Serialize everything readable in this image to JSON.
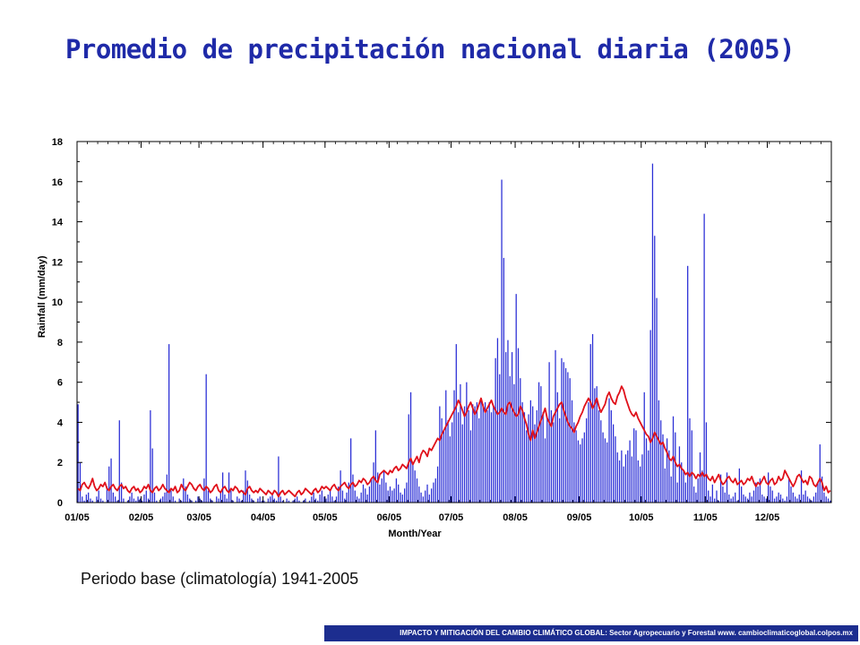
{
  "page": {
    "title": "Promedio de precipitación nacional diaria (2005)",
    "caption": "Periodo base (climatología) 1941-2005",
    "footer": "IMPACTO Y MITIGACIÓN DEL CAMBIO CLIMÁTICO GLOBAL: Sector Agropecuario y Forestal www. cambioclimaticoglobal.colpos.mx"
  },
  "colors": {
    "title": "#1f2aa8",
    "bars": "#2b2fd6",
    "climatology_line": "#e0101a",
    "footer_bg": "#1c2d8f"
  },
  "chart_data": {
    "type": "bar",
    "overlay": "line",
    "xlabel": "Month/Year",
    "ylabel": "Rainfall (mm/day)",
    "ylim": [
      0,
      18
    ],
    "yticks": [
      0,
      2,
      4,
      6,
      8,
      10,
      12,
      14,
      16,
      18
    ],
    "x_tick_labels": [
      "01/05",
      "02/05",
      "03/05",
      "04/05",
      "05/05",
      "06/05",
      "07/05",
      "08/05",
      "09/05",
      "10/05",
      "11/05",
      "12/05"
    ],
    "grid": false,
    "days_in_year": 365,
    "month_start_days": [
      0,
      31,
      59,
      90,
      120,
      151,
      181,
      212,
      243,
      273,
      304,
      334
    ],
    "series": [
      {
        "kind": "bar",
        "note": "daily national average precipitation 2005, approximate, one value per day",
        "monthly_daily_values": [
          [
            4.9,
            2.0,
            0.3,
            0.1,
            0.4,
            0.5,
            0.2,
            0.1,
            0.0,
            0.3,
            0.6,
            0.2,
            0.1,
            0.0,
            0.8,
            1.8,
            2.2,
            0.5,
            0.3,
            0.1,
            4.1,
            1.0,
            0.2,
            0.0,
            0.1,
            0.3,
            0.5,
            0.2,
            0.1,
            0.3,
            0.2
          ],
          [
            0.1,
            0.4,
            0.6,
            0.2,
            4.6,
            2.7,
            0.5,
            0.1,
            0.0,
            0.2,
            0.3,
            0.5,
            1.4,
            7.9,
            0.6,
            0.3,
            0.1,
            0.0,
            0.2,
            0.1,
            1.2,
            0.8,
            0.4,
            0.2,
            0.1,
            0.0,
            0.1,
            0.3
          ],
          [
            0.2,
            0.1,
            1.2,
            6.4,
            0.6,
            0.2,
            0.1,
            0.0,
            0.3,
            0.2,
            0.5,
            1.5,
            0.4,
            0.2,
            1.5,
            0.6,
            0.1,
            0.0,
            0.3,
            0.2,
            0.1,
            0.6,
            1.6,
            1.1,
            0.4,
            0.2,
            0.1,
            0.0,
            0.2,
            0.3,
            0.1
          ],
          [
            0.1,
            0.0,
            0.2,
            0.3,
            0.4,
            0.2,
            0.1,
            2.3,
            0.3,
            0.1,
            0.0,
            0.2,
            0.1,
            0.0,
            0.1,
            0.2,
            0.3,
            0.1,
            0.0,
            0.1,
            0.2,
            0.0,
            0.1,
            0.3,
            0.5,
            0.2,
            0.1,
            0.4,
            0.6,
            0.3
          ],
          [
            0.2,
            0.4,
            0.6,
            0.3,
            0.1,
            0.3,
            0.8,
            1.6,
            0.6,
            0.2,
            0.5,
            1.0,
            3.2,
            1.4,
            0.6,
            0.3,
            0.2,
            0.5,
            0.9,
            0.7,
            0.4,
            0.8,
            1.2,
            2.0,
            3.6,
            1.5,
            0.9,
            1.2,
            1.6,
            1.0,
            0.6
          ],
          [
            0.8,
            0.6,
            0.7,
            1.2,
            0.9,
            0.5,
            0.4,
            0.7,
            1.0,
            4.4,
            5.5,
            2.0,
            1.6,
            1.2,
            0.8,
            0.5,
            0.3,
            0.6,
            0.9,
            0.4,
            0.7,
            1.0,
            1.2,
            1.8,
            4.8,
            4.2,
            3.6,
            5.6,
            4.1,
            3.3
          ],
          [
            4.0,
            5.6,
            7.9,
            4.5,
            5.9,
            3.9,
            4.8,
            6.0,
            4.6,
            3.6,
            4.9,
            4.8,
            5.0,
            4.2,
            5.1,
            4.9,
            5.0,
            4.6,
            5.0,
            4.5,
            4.8,
            7.2,
            8.2,
            6.4,
            16.1,
            12.2,
            7.5,
            8.1,
            6.3,
            7.5,
            5.9
          ],
          [
            10.4,
            7.7,
            6.2,
            5.0,
            4.5,
            3.6,
            4.4,
            5.1,
            4.8,
            3.9,
            4.6,
            6.0,
            5.8,
            4.5,
            3.2,
            4.2,
            7.0,
            4.6,
            4.0,
            7.6,
            5.5,
            4.2,
            7.2,
            7.0,
            6.7,
            6.5,
            6.2,
            5.1,
            4.0,
            3.6,
            3.1
          ],
          [
            2.9,
            3.2,
            3.5,
            4.2,
            5.0,
            7.9,
            8.4,
            5.7,
            5.8,
            4.6,
            4.1,
            3.5,
            3.2,
            3.0,
            5.2,
            4.6,
            3.9,
            3.3,
            2.5,
            2.1,
            2.6,
            1.8,
            2.4,
            2.6,
            3.1,
            2.3,
            3.7,
            3.6,
            2.1,
            1.8
          ],
          [
            2.4,
            5.5,
            3.2,
            2.6,
            8.6,
            16.9,
            13.3,
            10.2,
            5.1,
            4.1,
            3.4,
            1.7,
            3.2,
            2.6,
            1.3,
            4.3,
            3.5,
            1.0,
            2.8,
            2.0,
            1.6,
            1.0,
            11.8,
            4.2,
            3.6,
            0.8,
            0.5,
            1.2,
            2.5,
            1.6,
            14.4
          ],
          [
            4.0,
            0.6,
            0.3,
            0.9,
            0.2,
            0.6,
            0.1,
            1.4,
            0.8,
            0.5,
            1.5,
            0.4,
            0.2,
            0.3,
            0.5,
            0.1,
            1.7,
            0.8,
            0.4,
            0.3,
            0.2,
            0.5,
            0.3,
            0.6,
            1.0,
            0.8,
            1.2,
            0.4,
            0.3,
            0.2
          ],
          [
            1.5,
            0.8,
            0.6,
            0.2,
            0.3,
            0.5,
            0.4,
            0.2,
            0.1,
            0.3,
            1.2,
            0.8,
            0.5,
            0.3,
            0.2,
            0.4,
            1.6,
            0.4,
            0.6,
            0.3,
            0.2,
            0.1,
            0.3,
            0.5,
            1.0,
            2.9,
            1.3,
            0.5,
            0.3,
            0.2,
            0.1
          ]
        ]
      },
      {
        "kind": "line",
        "note": "climatology 1941-2005, approximate daily value per month",
        "monthly_daily_values": [
          [
            0.7,
            0.6,
            0.9,
            1.0,
            0.8,
            0.7,
            0.9,
            1.2,
            0.8,
            0.6,
            0.7,
            0.9,
            0.8,
            1.0,
            0.7,
            0.6,
            0.8,
            0.9,
            0.7,
            0.6,
            0.8,
            0.9,
            0.7,
            0.8,
            0.6,
            0.5,
            0.7,
            0.8,
            0.6,
            0.7,
            0.5
          ],
          [
            0.6,
            0.8,
            0.7,
            0.9,
            0.6,
            0.5,
            0.7,
            0.8,
            0.6,
            0.7,
            0.9,
            0.7,
            0.6,
            0.5,
            0.7,
            0.6,
            0.8,
            0.5,
            0.6,
            0.9,
            0.7,
            0.6,
            0.8,
            1.0,
            0.9,
            0.7,
            0.6,
            0.8
          ],
          [
            0.9,
            0.7,
            0.6,
            0.8,
            0.7,
            0.5,
            0.6,
            0.8,
            0.9,
            0.6,
            0.5,
            0.7,
            0.8,
            0.6,
            0.5,
            0.7,
            0.6,
            0.8,
            0.7,
            0.5,
            0.6,
            0.5,
            0.4,
            0.7,
            0.8,
            0.6,
            0.5,
            0.6,
            0.5,
            0.7,
            0.6
          ],
          [
            0.5,
            0.4,
            0.6,
            0.5,
            0.4,
            0.6,
            0.5,
            0.3,
            0.5,
            0.6,
            0.4,
            0.5,
            0.6,
            0.5,
            0.4,
            0.3,
            0.5,
            0.6,
            0.4,
            0.5,
            0.7,
            0.6,
            0.5,
            0.4,
            0.6,
            0.7,
            0.5,
            0.6,
            0.8,
            0.7
          ],
          [
            0.8,
            0.7,
            0.6,
            0.8,
            0.9,
            0.7,
            0.6,
            0.8,
            0.9,
            1.0,
            0.8,
            0.7,
            0.9,
            1.0,
            0.8,
            0.9,
            1.1,
            1.0,
            1.2,
            1.1,
            0.9,
            1.0,
            1.2,
            1.3,
            1.1,
            1.0,
            1.4,
            1.5,
            1.6,
            1.5,
            1.4
          ],
          [
            1.6,
            1.5,
            1.7,
            1.8,
            1.6,
            1.7,
            1.9,
            1.8,
            1.7,
            2.0,
            2.2,
            1.9,
            2.1,
            2.3,
            2.0,
            2.4,
            2.6,
            2.5,
            2.3,
            2.7,
            2.6,
            2.8,
            3.0,
            3.2,
            3.1,
            3.4,
            3.6,
            3.8,
            4.0,
            4.2
          ],
          [
            4.4,
            4.6,
            4.8,
            5.1,
            4.9,
            4.6,
            4.3,
            4.5,
            4.8,
            5.0,
            4.7,
            4.4,
            4.6,
            4.9,
            5.2,
            4.8,
            4.5,
            4.7,
            4.9,
            5.1,
            4.8,
            4.6,
            4.4,
            4.5,
            4.7,
            4.5,
            4.4,
            4.9,
            5.0,
            4.7,
            4.5
          ],
          [
            4.3,
            4.4,
            4.8,
            4.6,
            4.2,
            3.9,
            3.4,
            3.1,
            3.6,
            3.2,
            3.5,
            3.8,
            4.1,
            4.4,
            4.7,
            4.2,
            4.0,
            3.8,
            4.3,
            4.5,
            4.7,
            4.9,
            5.0,
            4.6,
            4.3,
            4.0,
            3.8,
            3.7,
            3.5,
            3.8,
            4.0
          ],
          [
            4.3,
            4.5,
            4.8,
            5.0,
            5.2,
            5.0,
            4.7,
            4.9,
            5.2,
            4.8,
            4.5,
            4.7,
            4.9,
            5.3,
            5.5,
            5.2,
            5.0,
            4.9,
            5.3,
            5.5,
            5.8,
            5.6,
            5.2,
            4.9,
            4.6,
            4.4,
            4.3,
            4.5,
            4.2,
            4.0
          ],
          [
            3.8,
            3.6,
            3.4,
            3.3,
            3.0,
            3.2,
            3.5,
            3.3,
            3.1,
            2.9,
            3.0,
            2.7,
            2.5,
            2.2,
            2.1,
            2.3,
            2.0,
            1.8,
            1.9,
            1.7,
            1.6,
            1.4,
            1.5,
            1.3,
            1.5,
            1.4,
            1.2,
            1.4,
            1.3,
            1.5,
            1.3
          ],
          [
            1.4,
            1.2,
            1.1,
            1.3,
            1.0,
            1.2,
            1.4,
            1.1,
            0.9,
            1.0,
            1.2,
            1.3,
            1.1,
            1.0,
            1.2,
            0.9,
            1.0,
            1.1,
            0.9,
            1.0,
            1.2,
            1.1,
            1.3,
            1.0,
            0.8,
            1.0,
            0.9,
            1.1,
            1.3,
            1.0
          ],
          [
            0.9,
            1.1,
            1.2,
            0.9,
            1.0,
            1.3,
            1.1,
            1.2,
            1.6,
            1.4,
            1.2,
            1.0,
            0.8,
            1.0,
            1.3,
            1.4,
            1.2,
            1.0,
            1.1,
            0.9,
            1.3,
            1.2,
            0.9,
            0.8,
            1.0,
            1.2,
            1.0,
            0.6,
            0.8,
            0.5,
            0.6
          ]
        ]
      }
    ]
  }
}
